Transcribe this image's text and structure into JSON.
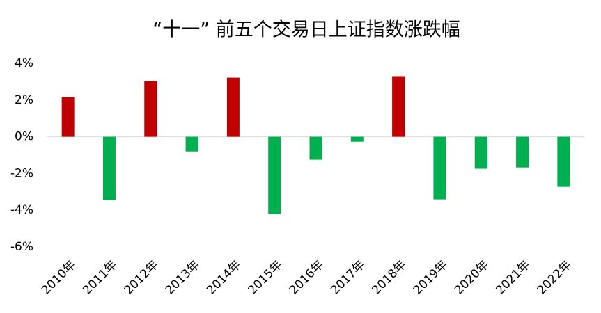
{
  "chart_data": {
    "type": "bar",
    "title": "“十一” 前五个交易日上证指数涨跌幅",
    "categories": [
      "2010年",
      "2011年",
      "2012年",
      "2013年",
      "2014年",
      "2015年",
      "2016年",
      "2017年",
      "2018年",
      "2019年",
      "2020年",
      "2021年",
      "2022年"
    ],
    "values": [
      2.16,
      -3.45,
      3.03,
      -0.8,
      3.22,
      -4.2,
      -1.25,
      -0.27,
      3.3,
      -3.41,
      -1.74,
      -1.67,
      -2.73
    ],
    "colors": [
      "#c00000",
      "#00b050",
      "#c00000",
      "#00b050",
      "#c00000",
      "#00b050",
      "#00b050",
      "#00b050",
      "#c00000",
      "#00b050",
      "#00b050",
      "#00b050",
      "#00b050"
    ],
    "ylim": [
      -6,
      4
    ],
    "yticks": [
      {
        "value": 4,
        "label": "4%"
      },
      {
        "value": 2,
        "label": "2%"
      },
      {
        "value": 0,
        "label": "0%"
      },
      {
        "value": -2,
        "label": "-2%"
      },
      {
        "value": -4,
        "label": "-4%"
      },
      {
        "value": -6,
        "label": "-6%"
      }
    ],
    "grid": false
  }
}
